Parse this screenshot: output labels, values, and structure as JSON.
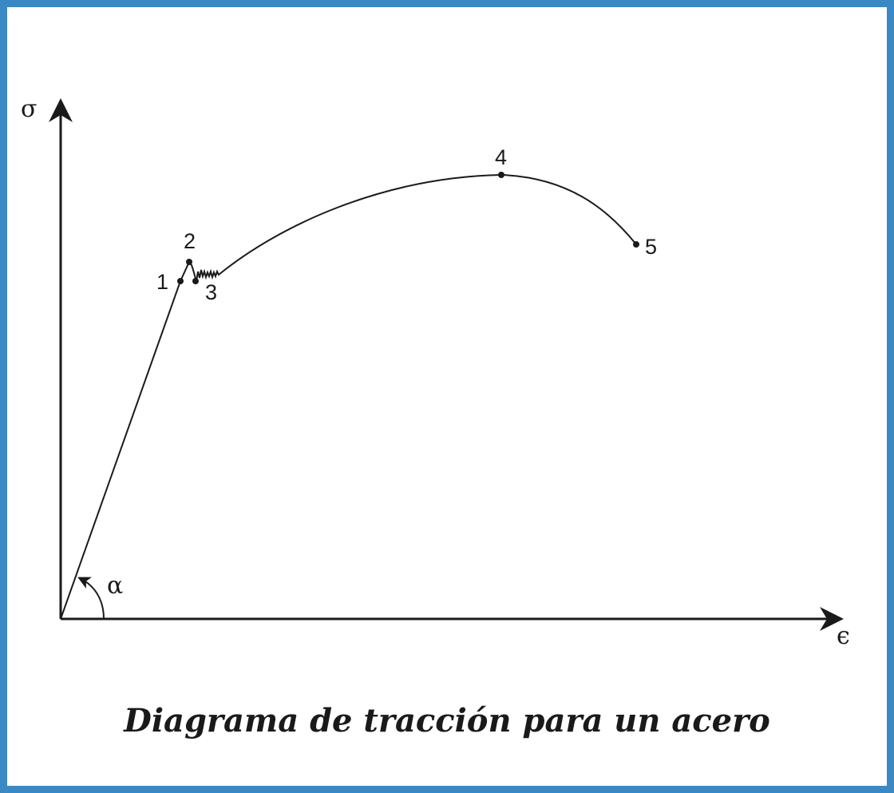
{
  "diagram": {
    "y_axis_label": "σ",
    "x_axis_label": "ϵ",
    "angle_label": "α",
    "points": [
      {
        "id": "1",
        "label": "1"
      },
      {
        "id": "2",
        "label": "2"
      },
      {
        "id": "3",
        "label": "3"
      },
      {
        "id": "4",
        "label": "4"
      },
      {
        "id": "5",
        "label": "5"
      }
    ],
    "caption": "Diagrama de tracción para un acero"
  },
  "colors": {
    "border": "#3a89c4",
    "ink": "#1a1a1a"
  }
}
